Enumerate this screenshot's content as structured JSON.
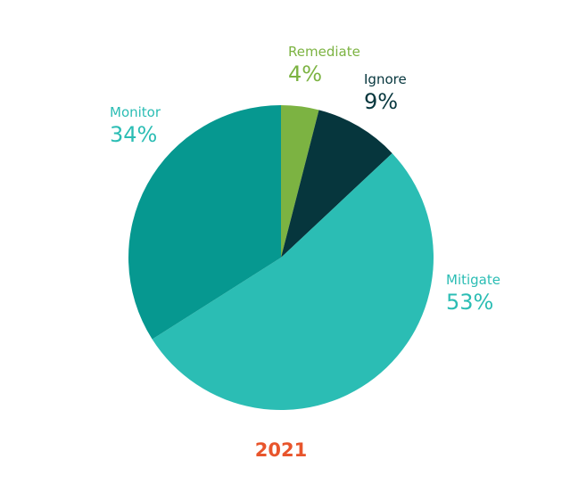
{
  "chart_data": {
    "type": "pie",
    "categories": [
      "Remediate",
      "Ignore",
      "Mitigate",
      "Monitor"
    ],
    "values": [
      4,
      9,
      53,
      34
    ],
    "value_labels": [
      "4%",
      "9%",
      "53%",
      "34%"
    ],
    "colors": [
      "#7cb342",
      "#06363d",
      "#2bbdb4",
      "#069890"
    ],
    "label_colors": [
      "#7cb342",
      "#06363d",
      "#2bbdb4",
      "#2bbdb4"
    ],
    "title": "2021",
    "title_color": "#e8552c"
  }
}
